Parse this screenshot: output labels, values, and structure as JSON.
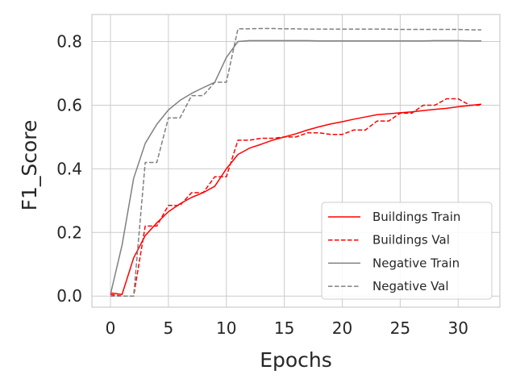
{
  "chart_data": {
    "type": "line",
    "xlabel": "Epochs",
    "ylabel": "F1_Score",
    "xlim": [
      -1.6,
      33.6
    ],
    "ylim": [
      -0.035,
      0.885
    ],
    "xticks": [
      0,
      5,
      10,
      15,
      20,
      25,
      30
    ],
    "yticks": [
      0.0,
      0.2,
      0.4,
      0.6,
      0.8
    ],
    "ytick_labels": [
      "0.0",
      "0.2",
      "0.4",
      "0.6",
      "0.8"
    ],
    "grid": true,
    "legend_position": "lower-right",
    "x": [
      0,
      1,
      2,
      3,
      4,
      5,
      6,
      7,
      8,
      9,
      10,
      11,
      12,
      13,
      14,
      15,
      16,
      17,
      18,
      19,
      20,
      21,
      22,
      23,
      24,
      25,
      26,
      27,
      28,
      29,
      30,
      31,
      32
    ],
    "series": [
      {
        "name": "Buildings Train",
        "color": "#ff0000",
        "style": "solid",
        "values": [
          0.01,
          0.005,
          0.12,
          0.19,
          0.23,
          0.265,
          0.29,
          0.31,
          0.325,
          0.345,
          0.4,
          0.445,
          0.465,
          0.477,
          0.49,
          0.5,
          0.51,
          0.522,
          0.532,
          0.541,
          0.548,
          0.556,
          0.563,
          0.57,
          0.573,
          0.576,
          0.579,
          0.583,
          0.587,
          0.59,
          0.595,
          0.599,
          0.603
        ]
      },
      {
        "name": "Buildings Val",
        "color": "#ff0000",
        "style": "dashed",
        "values": [
          0.005,
          0.0,
          0.0,
          0.22,
          0.22,
          0.285,
          0.285,
          0.325,
          0.325,
          0.375,
          0.375,
          0.49,
          0.49,
          0.496,
          0.496,
          0.5,
          0.5,
          0.513,
          0.513,
          0.508,
          0.508,
          0.522,
          0.522,
          0.55,
          0.55,
          0.575,
          0.575,
          0.6,
          0.6,
          0.62,
          0.62,
          0.6,
          0.6
        ]
      },
      {
        "name": "Negative Train",
        "color": "#808080",
        "style": "solid",
        "values": [
          0.005,
          0.16,
          0.37,
          0.48,
          0.54,
          0.585,
          0.615,
          0.637,
          0.655,
          0.672,
          0.75,
          0.8,
          0.803,
          0.803,
          0.803,
          0.803,
          0.803,
          0.803,
          0.802,
          0.802,
          0.802,
          0.802,
          0.802,
          0.802,
          0.802,
          0.802,
          0.802,
          0.802,
          0.803,
          0.803,
          0.803,
          0.802,
          0.802
        ]
      },
      {
        "name": "Negative Val",
        "color": "#808080",
        "style": "dashed",
        "values": [
          0.0,
          0.0,
          0.0,
          0.42,
          0.42,
          0.56,
          0.56,
          0.63,
          0.63,
          0.672,
          0.672,
          0.84,
          0.84,
          0.841,
          0.841,
          0.84,
          0.84,
          0.839,
          0.839,
          0.839,
          0.839,
          0.839,
          0.839,
          0.839,
          0.839,
          0.838,
          0.838,
          0.838,
          0.838,
          0.838,
          0.838,
          0.837,
          0.837
        ]
      }
    ]
  }
}
